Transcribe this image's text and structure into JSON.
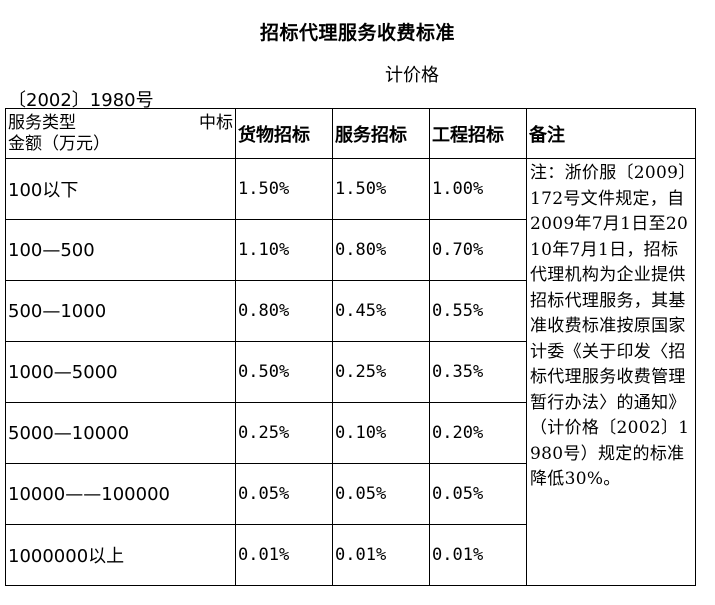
{
  "header": {
    "title": "招标代理服务收费标准",
    "doc_prefix": "计价格",
    "doc_number": "〔2002〕1980号"
  },
  "table": {
    "first_header": {
      "left_top": "服务类型",
      "right_top": "中标",
      "bottom": "金额（万元）"
    },
    "columns": [
      "货物招标",
      "服务招标",
      "工程招标",
      "备注"
    ],
    "rows": [
      {
        "range": "100以下",
        "goods": "1.50%",
        "service": "1.50%",
        "engineering": "1.00%"
      },
      {
        "range": "100—500",
        "goods": "1.10%",
        "service": "0.80%",
        "engineering": "0.70%"
      },
      {
        "range": "500—1000",
        "goods": "0.80%",
        "service": "0.45%",
        "engineering": "0.55%"
      },
      {
        "range": "1000—5000",
        "goods": "0.50%",
        "service": "0.25%",
        "engineering": "0.35%"
      },
      {
        "range": "5000—10000",
        "goods": "0.25%",
        "service": "0.10%",
        "engineering": "0.20%"
      },
      {
        "range": "10000——100000",
        "goods": "0.05%",
        "service": "0.05%",
        "engineering": "0.05%"
      },
      {
        "range": "1000000以上",
        "goods": "0.01%",
        "service": "0.01%",
        "engineering": "0.01%"
      }
    ],
    "note": "注：浙价服〔2009〕172号文件规定，自2009年7月1日至2010年7月1日，招标代理机构为企业提供招标代理服务，其基准收费标准按原国家计委《关于印发〈招标代理服务收费管理暂行办法〉的通知》（计价格〔2002〕1980号）规定的标准降低30%。"
  }
}
